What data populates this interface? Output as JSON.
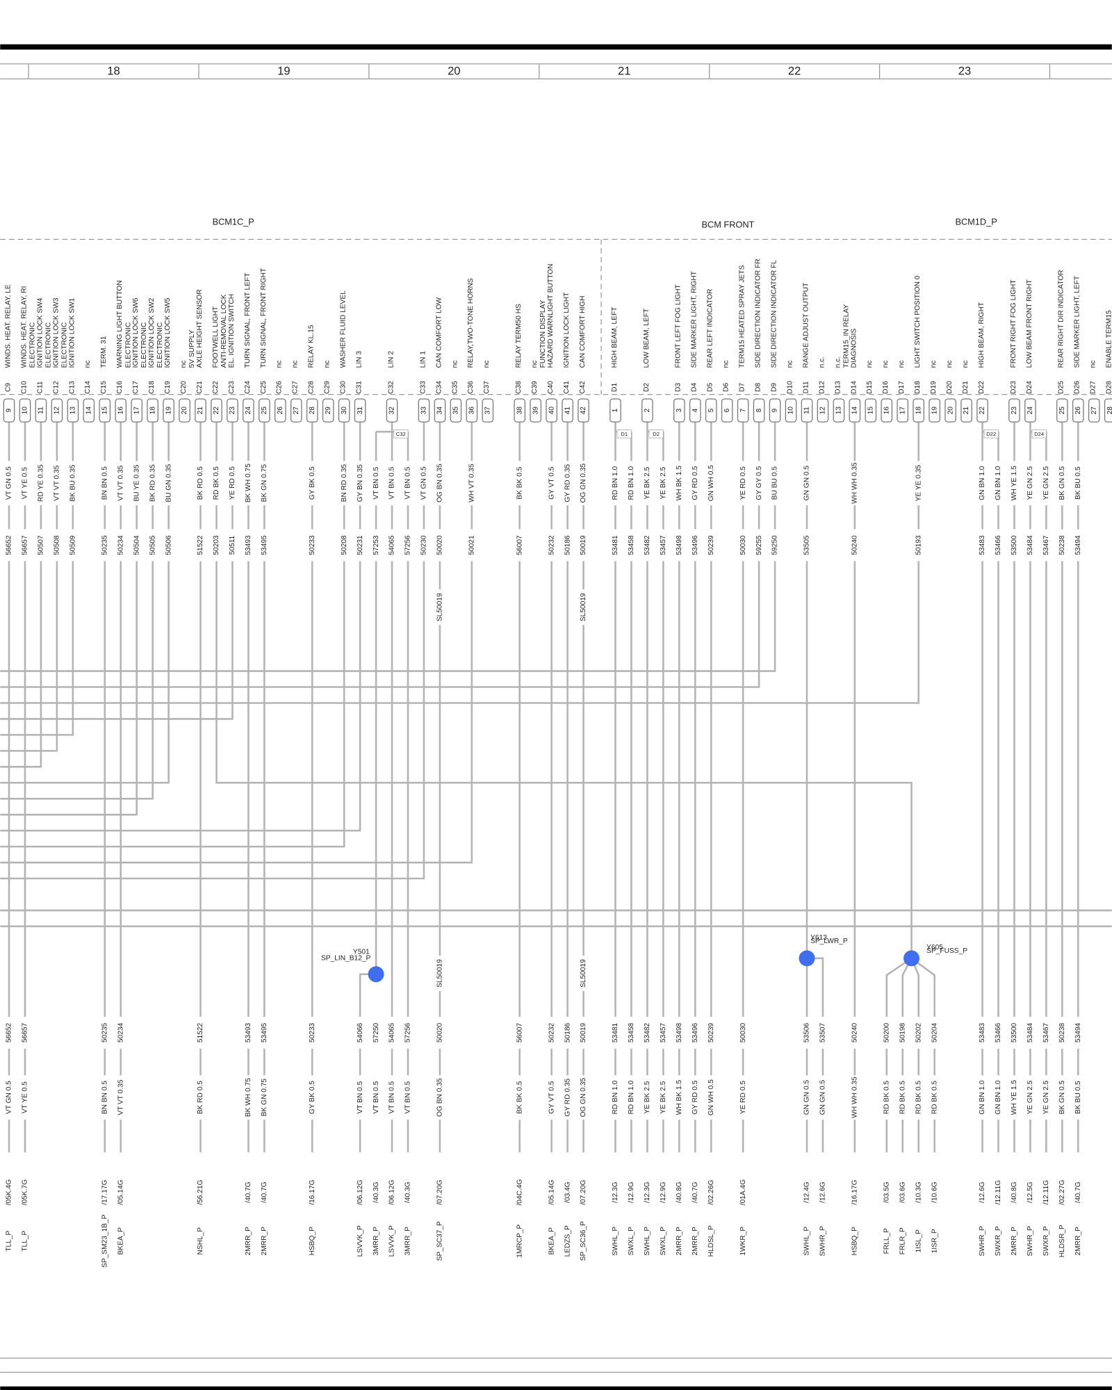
{
  "columns": [
    "18",
    "19",
    "20",
    "21",
    "22",
    "23"
  ],
  "connectors": [
    "BCM1C_P",
    "BCM FRONT",
    "BCM1D_P"
  ],
  "pins": [
    {
      "id": "C9",
      "label": [
        "WINDS. HEAT. RELAY, LE"
      ],
      "number": "9",
      "wires": [
        {
          "color": "VT GN 0.5",
          "number": "56652"
        }
      ]
    },
    {
      "id": "C10",
      "label": [
        "WINDS. HEAT. RELAY, RI"
      ],
      "number": "10",
      "wires": [
        {
          "color": "VT YE 0.5",
          "number": "56657"
        }
      ]
    },
    {
      "id": "C11",
      "label": [
        "ELECTRONIC",
        "IGNITION LOCK SW4"
      ],
      "number": "11",
      "wires": [
        {
          "color": "RD YE 0.35",
          "number": "50507"
        }
      ]
    },
    {
      "id": "C12",
      "label": [
        "ELECTRONIC",
        "IGNITION LOCK SW3"
      ],
      "number": "12",
      "wires": [
        {
          "color": "VT VT 0.35",
          "number": "50508"
        }
      ]
    },
    {
      "id": "C13",
      "label": [
        "ELECTRONIC",
        "IGNITION LOCK SW1"
      ],
      "number": "13",
      "wires": [
        {
          "color": "BK BU 0.35",
          "number": "50509"
        }
      ]
    },
    {
      "id": "C14",
      "label": [
        "nc"
      ],
      "number": "14",
      "wires": []
    },
    {
      "id": "C15",
      "label": [
        "TERM. 31"
      ],
      "number": "15",
      "wires": [
        {
          "color": "BN BN 0.5",
          "number": "50235"
        }
      ]
    },
    {
      "id": "C16",
      "label": [
        "WARNING LIGHT BUTTON"
      ],
      "number": "16",
      "wires": [
        {
          "color": "VT VT 0.35",
          "number": "50234"
        }
      ]
    },
    {
      "id": "C17",
      "label": [
        "ELECTRONIC",
        "IGNITION LOCK SW6"
      ],
      "number": "17",
      "wires": [
        {
          "color": "BU YE 0.35",
          "number": "50504"
        }
      ]
    },
    {
      "id": "C18",
      "label": [
        "ELECTRONIC",
        "IGNITION LOCK SW2"
      ],
      "number": "18",
      "wires": [
        {
          "color": "BK RD 0.35",
          "number": "50505"
        }
      ]
    },
    {
      "id": "C19",
      "label": [
        "ELECTRONIC",
        "IGNITION LOCK SW5"
      ],
      "number": "19",
      "wires": [
        {
          "color": "BU GN 0.35",
          "number": "50506"
        }
      ]
    },
    {
      "id": "C20",
      "label": [
        "nc"
      ],
      "number": "20",
      "wires": []
    },
    {
      "id": "C21",
      "label": [
        "5V SUPPLY",
        "AXLE HEIGHT SENSOR"
      ],
      "number": "21",
      "wires": [
        {
          "color": "BK RD 0.5",
          "number": "51522"
        }
      ]
    },
    {
      "id": "C22",
      "label": [
        "FOOTWELL LIGHT"
      ],
      "number": "22",
      "wires": [
        {
          "color": "RD BK 0.5",
          "number": "50203"
        }
      ]
    },
    {
      "id": "C23",
      "label": [
        "ANTI-REMOVAL LOCK",
        "EL. IGNITION SWITCH"
      ],
      "number": "23",
      "wires": [
        {
          "color": "YE RD 0.5",
          "number": "50511"
        }
      ]
    },
    {
      "id": "C24",
      "label": [
        "TURN SIGNAL, FRONT LEFT"
      ],
      "number": "24",
      "wires": [
        {
          "color": "BK WH 0.75",
          "number": "53493"
        }
      ]
    },
    {
      "id": "C25",
      "label": [
        "TURN SIGNAL, FRONT RIGHT"
      ],
      "number": "25",
      "wires": [
        {
          "color": "BK GN 0.75",
          "number": "53495"
        }
      ]
    },
    {
      "id": "C26",
      "label": [
        "nc"
      ],
      "number": "26",
      "wires": []
    },
    {
      "id": "C27",
      "label": [
        "nc"
      ],
      "number": "27",
      "wires": []
    },
    {
      "id": "C28",
      "label": [
        "RELAY KL.15"
      ],
      "number": "28",
      "wires": [
        {
          "color": "GY BK 0.5",
          "number": "50233"
        }
      ]
    },
    {
      "id": "C29",
      "label": [
        "nc"
      ],
      "number": "29",
      "wires": []
    },
    {
      "id": "C30",
      "label": [
        "WASHER FLUID LEVEL"
      ],
      "number": "30",
      "wires": [
        {
          "color": "BN RD 0.35",
          "number": "50208"
        }
      ]
    },
    {
      "id": "C31",
      "label": [
        "LIN 3"
      ],
      "number": "31",
      "wires": [
        {
          "color": "GY BN 0.35",
          "number": "50231"
        }
      ]
    },
    {
      "id": "C32",
      "label": [
        "LIN 2"
      ],
      "number": "32",
      "wires": [
        {
          "color": "VT BN 0.5",
          "number": "57253"
        },
        {
          "color": "VT BN 0.5",
          "number": "54065"
        },
        {
          "color": "VT BN 0.5",
          "number": "57256"
        }
      ]
    },
    {
      "id": "C33",
      "label": [
        "LIN 1"
      ],
      "number": "33",
      "wires": [
        {
          "color": "VT GN 0.5",
          "number": "50230"
        }
      ]
    },
    {
      "id": "C34",
      "label": [
        "CAN COMFORT LOW"
      ],
      "number": "34",
      "wires": [
        {
          "color": "OG BN 0.35",
          "number": "50020"
        }
      ]
    },
    {
      "id": "C35",
      "label": [
        "nc"
      ],
      "number": "35",
      "wires": []
    },
    {
      "id": "C36",
      "label": [
        "RELAY,TWO-TONE HORNS"
      ],
      "number": "36",
      "wires": [
        {
          "color": "WH VT 0.35",
          "number": "50021"
        }
      ]
    },
    {
      "id": "C37",
      "label": [
        "nc"
      ],
      "number": "37",
      "wires": []
    },
    {
      "id": "C38",
      "label": [
        "RELAY TERM50 HS"
      ],
      "number": "38",
      "wires": [
        {
          "color": "BK BK 0.5",
          "number": "56007"
        }
      ]
    },
    {
      "id": "C39",
      "label": [
        "nc"
      ],
      "number": "39",
      "wires": []
    },
    {
      "id": "C40",
      "label": [
        "FUNCTION DISPLAY",
        "HAZARD WARNLIGHT BUTTON"
      ],
      "number": "40",
      "wires": [
        {
          "color": "GY VT 0.5",
          "number": "50232"
        }
      ]
    },
    {
      "id": "C41",
      "label": [
        "IGNITION LOCK LIGHT"
      ],
      "number": "41",
      "wires": [
        {
          "color": "GY RD 0.35",
          "number": "50186"
        }
      ]
    },
    {
      "id": "C42",
      "label": [
        "CAN COMFORT HIGH"
      ],
      "number": "42",
      "wires": [
        {
          "color": "OG GN 0.35",
          "number": "50019"
        }
      ]
    },
    {
      "id": "D1",
      "label": [
        "HIGH BEAM, LEFT"
      ],
      "number": "1",
      "wires": [
        {
          "color": "RD BN 1.0",
          "number": "53481"
        },
        {
          "color": "RD BN 1.0",
          "number": "53458"
        }
      ]
    },
    {
      "id": "D2",
      "label": [
        "LOW BEAM, LEFT"
      ],
      "number": "2",
      "wires": [
        {
          "color": "YE BK 2.5",
          "number": "53482"
        },
        {
          "color": "YE BK 2.5",
          "number": "53457"
        }
      ]
    },
    {
      "id": "D3",
      "label": [
        "FRONT LEFT FOG LIGHT"
      ],
      "number": "3",
      "wires": [
        {
          "color": "WH BK 1.5",
          "number": "53498"
        }
      ]
    },
    {
      "id": "D4",
      "label": [
        "SIDE MARKER LIGHT, RIGHT"
      ],
      "number": "4",
      "wires": [
        {
          "color": "GY RD 0.5",
          "number": "53496"
        }
      ]
    },
    {
      "id": "D5",
      "label": [
        "REAR LEFT INDICATOR"
      ],
      "number": "5",
      "wires": [
        {
          "color": "GN WH 0.5",
          "number": "50239"
        }
      ]
    },
    {
      "id": "D6",
      "label": [
        "nc"
      ],
      "number": "6",
      "wires": []
    },
    {
      "id": "D7",
      "label": [
        "TERM15 HEATED SPRAY JETS"
      ],
      "number": "7",
      "wires": [
        {
          "color": "YE RD 0.5",
          "number": "50030"
        }
      ]
    },
    {
      "id": "D8",
      "label": [
        "SIDE DIRECTION INDICATOR FR"
      ],
      "number": "8",
      "wires": [
        {
          "color": "GY GY 0.5",
          "number": "59255"
        }
      ]
    },
    {
      "id": "D9",
      "label": [
        "SIDE DIRECTION INDICATOR FL"
      ],
      "number": "9",
      "wires": [
        {
          "color": "BU BU 0.5",
          "number": "59250"
        }
      ]
    },
    {
      "id": "D10",
      "label": [
        "nc"
      ],
      "number": "10",
      "wires": []
    },
    {
      "id": "D11",
      "label": [
        "RANGE ADJUST OUTPUT"
      ],
      "number": "11",
      "wires": [
        {
          "color": "GN GN 0.5",
          "number": "53505"
        }
      ]
    },
    {
      "id": "D12",
      "label": [
        "n.c."
      ],
      "number": "12",
      "wires": []
    },
    {
      "id": "D13",
      "label": [
        "n.c."
      ],
      "number": "13",
      "wires": []
    },
    {
      "id": "D14",
      "label": [
        "TERM15_IN RELAY",
        "DIAGNOSIS"
      ],
      "number": "14",
      "wires": [
        {
          "color": "WH WH 0.35",
          "number": "50240"
        }
      ]
    },
    {
      "id": "D15",
      "label": [
        "nc"
      ],
      "number": "15",
      "wires": []
    },
    {
      "id": "D16",
      "label": [
        "nc"
      ],
      "number": "16",
      "wires": []
    },
    {
      "id": "D17",
      "label": [
        "nc"
      ],
      "number": "17",
      "wires": []
    },
    {
      "id": "D18",
      "label": [
        "LIGHT SWITCH POSITION 0"
      ],
      "number": "18",
      "wires": [
        {
          "color": "YE YE 0.35",
          "number": "50193"
        }
      ]
    },
    {
      "id": "D19",
      "label": [
        "nc"
      ],
      "number": "19",
      "wires": []
    },
    {
      "id": "D20",
      "label": [
        "nc"
      ],
      "number": "20",
      "wires": []
    },
    {
      "id": "D21",
      "label": [
        "nc"
      ],
      "number": "21",
      "wires": []
    },
    {
      "id": "D22",
      "label": [
        "HIGH BEAM, RIGHT"
      ],
      "number": "22",
      "wires": [
        {
          "color": "GN BN 1.0",
          "number": "53483"
        },
        {
          "color": "GN BN 1.0",
          "number": "53466"
        }
      ]
    },
    {
      "id": "D23",
      "label": [
        "FRONT RIGHT FOG LIGHT"
      ],
      "number": "23",
      "wires": [
        {
          "color": "WH YE 1.5",
          "number": "53500"
        }
      ]
    },
    {
      "id": "D24",
      "label": [
        "LOW BEAM FRONT RIGHT"
      ],
      "number": "24",
      "wires": [
        {
          "color": "YE GN 2.5",
          "number": "53484"
        },
        {
          "color": "YE GN 2.5",
          "number": "53467"
        }
      ]
    },
    {
      "id": "D25",
      "label": [
        "REAR RIGHT DIR INDICATOR"
      ],
      "number": "25",
      "wires": [
        {
          "color": "BK GN 0.5",
          "number": "50238"
        }
      ]
    },
    {
      "id": "D26",
      "label": [
        "SIDE MARKER LIGHT, LEFT"
      ],
      "number": "26",
      "wires": [
        {
          "color": "BK BU 0.5",
          "number": "53494"
        }
      ]
    },
    {
      "id": "D27",
      "label": [
        "nc"
      ],
      "number": "27",
      "wires": []
    },
    {
      "id": "D28",
      "label": [
        "ENABLE TERM15"
      ],
      "number": "28",
      "wires": []
    }
  ],
  "harness": [
    {
      "number": "56652",
      "color": "VT GN 0.5",
      "destination": "TLL_P",
      "reference": "/05K.4G"
    },
    {
      "number": "56657",
      "color": "VT YE 0.5",
      "destination": "TLL_P",
      "reference": "/05K.7G"
    },
    {
      "number": "50235",
      "color": "BN BN 0.5",
      "destination": "SP_SM23_1B_P",
      "reference": "/17.17G"
    },
    {
      "number": "50234",
      "color": "VT VT 0.35",
      "destination": "BKEA_P",
      "reference": "/05.14G"
    },
    {
      "number": "51522",
      "color": "BK RD 0.5",
      "destination": "NSHL_P",
      "reference": "/56.21G"
    },
    {
      "number": "53493",
      "color": "BK WH 0.75",
      "destination": "2MRR_P",
      "reference": "/40.7G"
    },
    {
      "number": "53495",
      "color": "BK GN 0.75",
      "destination": "2MRR_P",
      "reference": "/40.7G"
    },
    {
      "number": "50233",
      "color": "GY BK 0.5",
      "destination": "HSBQ_P",
      "reference": "/16.17G"
    },
    {
      "number": "54066",
      "color": "VT BN 0.5",
      "destination": "LSVVK_P",
      "reference": "/06.12G"
    },
    {
      "number": "57250",
      "color": "VT BN 0.5",
      "destination": "3MRR_P",
      "reference": "/40.3G"
    },
    {
      "number": "54065",
      "color": "VT BN 0.5",
      "destination": "LSVVK_P",
      "reference": "/06.12G"
    },
    {
      "number": "57256",
      "color": "VT BN 0.5",
      "destination": "3MRR_P",
      "reference": "/40.3G"
    },
    {
      "number": "50020",
      "color": "OG BN 0.35",
      "destination": "SP_SC37_P",
      "reference": "/07.20G"
    },
    {
      "number": "56007",
      "color": "BK BK 0.5",
      "destination": "1MRCP_P",
      "reference": "/04C.4G"
    },
    {
      "number": "50232",
      "color": "GY VT 0.5",
      "destination": "BKEA_P",
      "reference": "/05.14G"
    },
    {
      "number": "50186",
      "color": "GY RD 0.35",
      "destination": "LEDZS_P",
      "reference": "/03.4G"
    },
    {
      "number": "50019",
      "color": "OG GN 0.35",
      "destination": "SP_SC36_P",
      "reference": "/07.20G"
    },
    {
      "number": "53481",
      "color": "RD BN 1.0",
      "destination": "SWHL_P",
      "reference": "/12.3G"
    },
    {
      "number": "53458",
      "color": "RD BN 1.0",
      "destination": "SWXL_P",
      "reference": "/12.9G"
    },
    {
      "number": "53482",
      "color": "YE BK 2.5",
      "destination": "SWHL_P",
      "reference": "/12.3G"
    },
    {
      "number": "53457",
      "color": "YE BK 2.5",
      "destination": "SWXL_P",
      "reference": "/12.9G"
    },
    {
      "number": "53498",
      "color": "WH BK 1.5",
      "destination": "2MRR_P",
      "reference": "/40.8G"
    },
    {
      "number": "53496",
      "color": "GY RD 0.5",
      "destination": "2MRR_P",
      "reference": "/40.7G"
    },
    {
      "number": "50239",
      "color": "GN WH 0.5",
      "destination": "HLDSL_P",
      "reference": "/02.26G"
    },
    {
      "number": "50030",
      "color": "YE RD 0.5",
      "destination": "1WKR_P",
      "reference": "/01A.4G"
    },
    {
      "number": "53506",
      "color": "GN GN 0.5",
      "destination": "SWHL_P",
      "reference": "/12.4G"
    },
    {
      "number": "53507",
      "color": "GN GN 0.5",
      "destination": "SWHR_P",
      "reference": "/12.6G"
    },
    {
      "number": "50240",
      "color": "WH WH 0.35",
      "destination": "HSBQ_P",
      "reference": "/16.17G"
    },
    {
      "number": "50200",
      "color": "RD BK 0.5",
      "destination": "FRLL_P",
      "reference": "/03.5G"
    },
    {
      "number": "50198",
      "color": "RD BK 0.5",
      "destination": "FRLR_P",
      "reference": "/03.6G"
    },
    {
      "number": "50202",
      "color": "RD BK 0.5",
      "destination": "1ISL_P",
      "reference": "/10.3G"
    },
    {
      "number": "50204",
      "color": "RD BK 0.5",
      "destination": "1ISR_P",
      "reference": "/10.6G"
    },
    {
      "number": "53483",
      "color": "GN BN 1.0",
      "destination": "SWHR_P",
      "reference": "/12.6G"
    },
    {
      "number": "53466",
      "color": "GN BN 1.0",
      "destination": "SWXR_P",
      "reference": "/12.11G"
    },
    {
      "number": "53500",
      "color": "WH YE 1.5",
      "destination": "2MRR_P",
      "reference": "/40.8G"
    },
    {
      "number": "53484",
      "color": "YE GN 2.5",
      "destination": "SWHR_P",
      "reference": "/12.5G"
    },
    {
      "number": "53467",
      "color": "YE GN 2.5",
      "destination": "SWXR_P",
      "reference": "/12.11G"
    },
    {
      "number": "50238",
      "color": "BK GN 0.5",
      "destination": "HLDSR_P",
      "reference": "/02.27G"
    },
    {
      "number": "53494",
      "color": "BK BU 0.5",
      "destination": "2MRR_P",
      "reference": "/40.7G"
    }
  ],
  "splices": [
    {
      "id": "Y501",
      "name": "SP_LIN_B12_P"
    },
    {
      "id": "Y613",
      "name": "SP_LWR_P"
    },
    {
      "id": "Y605",
      "name": "SP_FUSS_P"
    }
  ],
  "shield_labels": [
    "SL50019",
    "SL50019",
    "SL50019",
    "SL50019"
  ]
}
